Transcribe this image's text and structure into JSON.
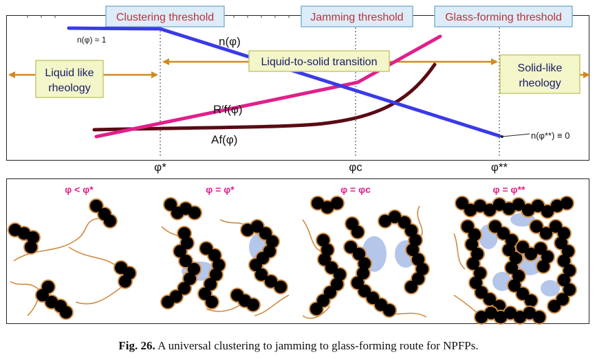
{
  "top": {
    "thresholds": [
      {
        "label": "Clustering threshold"
      },
      {
        "label": "Jamming threshold"
      },
      {
        "label": "Glass-forming threshold"
      }
    ],
    "regions": {
      "liquid": [
        "Liquid like",
        "rheology"
      ],
      "transition": "Liquid-to-solid transition",
      "solid": [
        "Solid-like",
        "rheology"
      ]
    },
    "curve_labels": {
      "n": "n(φ)",
      "n_start": "n(φ) ≈ 1",
      "n_end": "n(φ**) ≡ 0",
      "R": "R′f(φ)",
      "A": "Af(φ)"
    },
    "axis_ticks": [
      "φ*",
      "φc",
      "φ**"
    ],
    "colors": {
      "n_curve": "#3a3ae8",
      "R_curve": "#e0208a",
      "A_curve": "#5a0a14",
      "arrow": "#d08a20",
      "threshold_box_fill": "#dcecf8",
      "threshold_box_stroke": "#7fb3d8",
      "threshold_text": "#c0303a",
      "region_box_fill": "#f2f6c8",
      "region_box_stroke": "#c8c870"
    }
  },
  "bottom": {
    "panels": [
      {
        "label": "φ < φ*"
      },
      {
        "label": "φ = φ*"
      },
      {
        "label": "φ = φc"
      },
      {
        "label": "φ = φ**"
      }
    ],
    "colors": {
      "label": "#e0208a",
      "particle": "#000000",
      "shell": "#d08a40",
      "pore": "#a8bce8"
    }
  },
  "caption": {
    "fig": "Fig. 26.",
    "text": "A universal clustering to jamming to glass-forming route for NPFPs."
  }
}
